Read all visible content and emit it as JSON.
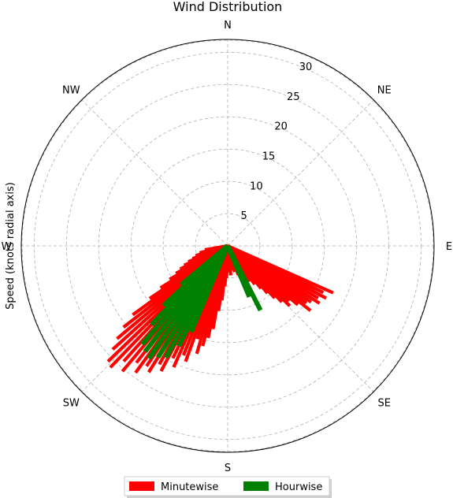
{
  "chart_data": {
    "type": "polar-bar",
    "title": "Wind Distribution",
    "ylabel": "Speed (knots radial axis)",
    "directions": [
      "N",
      "NE",
      "E",
      "SE",
      "S",
      "SW",
      "W",
      "NW"
    ],
    "radial_ticks": [
      "5",
      "10",
      "15",
      "20",
      "25",
      "30"
    ],
    "rlim": [
      0,
      32
    ],
    "theta_zero": "N",
    "theta_direction": "clockwise",
    "grid": true,
    "legend": {
      "placement": "bottom-center",
      "entries": [
        "Minutewise",
        "Hourwise"
      ]
    },
    "series": [
      {
        "name": "Minutewise",
        "color": "#ff0000",
        "points": [
          {
            "dir_deg": 114,
            "speed": 17.9
          },
          {
            "dir_deg": 116,
            "speed": 16.5
          },
          {
            "dir_deg": 118,
            "speed": 17.3
          },
          {
            "dir_deg": 120,
            "speed": 16.2
          },
          {
            "dir_deg": 122,
            "speed": 16.8
          },
          {
            "dir_deg": 124,
            "speed": 15.6
          },
          {
            "dir_deg": 126,
            "speed": 15.1
          },
          {
            "dir_deg": 128,
            "speed": 16.3
          },
          {
            "dir_deg": 130,
            "speed": 14.2
          },
          {
            "dir_deg": 132,
            "speed": 12.8
          },
          {
            "dir_deg": 134,
            "speed": 13.4
          },
          {
            "dir_deg": 136,
            "speed": 12.1
          },
          {
            "dir_deg": 138,
            "speed": 10.9
          },
          {
            "dir_deg": 140,
            "speed": 9.6
          },
          {
            "dir_deg": 142,
            "speed": 8.4
          },
          {
            "dir_deg": 145,
            "speed": 7.3
          },
          {
            "dir_deg": 148,
            "speed": 6.5
          },
          {
            "dir_deg": 152,
            "speed": 6.2
          },
          {
            "dir_deg": 156,
            "speed": 5.4
          },
          {
            "dir_deg": 160,
            "speed": 4.8
          },
          {
            "dir_deg": 165,
            "speed": 4.2
          },
          {
            "dir_deg": 170,
            "speed": 3.9
          },
          {
            "dir_deg": 174,
            "speed": 4.6
          },
          {
            "dir_deg": 176,
            "speed": 3.2
          },
          {
            "dir_deg": 178,
            "speed": 4.1
          },
          {
            "dir_deg": 182,
            "speed": 5.0
          },
          {
            "dir_deg": 184,
            "speed": 6.3
          },
          {
            "dir_deg": 186,
            "speed": 8.5
          },
          {
            "dir_deg": 188,
            "speed": 10.2
          },
          {
            "dir_deg": 190,
            "speed": 13.1
          },
          {
            "dir_deg": 192,
            "speed": 14.6
          },
          {
            "dir_deg": 194,
            "speed": 16.0
          },
          {
            "dir_deg": 196,
            "speed": 17.4
          },
          {
            "dir_deg": 198,
            "speed": 15.2
          },
          {
            "dir_deg": 200,
            "speed": 19.1
          },
          {
            "dir_deg": 202,
            "speed": 18.3
          },
          {
            "dir_deg": 204,
            "speed": 20.6
          },
          {
            "dir_deg": 206,
            "speed": 19.4
          },
          {
            "dir_deg": 208,
            "speed": 22.0
          },
          {
            "dir_deg": 210,
            "speed": 21.2
          },
          {
            "dir_deg": 212,
            "speed": 23.1
          },
          {
            "dir_deg": 214,
            "speed": 22.5
          },
          {
            "dir_deg": 216,
            "speed": 24.3
          },
          {
            "dir_deg": 218,
            "speed": 23.0
          },
          {
            "dir_deg": 220,
            "speed": 25.4
          },
          {
            "dir_deg": 222,
            "speed": 24.1
          },
          {
            "dir_deg": 224,
            "speed": 26.2
          },
          {
            "dir_deg": 226,
            "speed": 25.8
          },
          {
            "dir_deg": 228,
            "speed": 24.0
          },
          {
            "dir_deg": 230,
            "speed": 22.4
          },
          {
            "dir_deg": 232,
            "speed": 20.5
          },
          {
            "dir_deg": 234,
            "speed": 18.2
          },
          {
            "dir_deg": 236,
            "speed": 14.6
          },
          {
            "dir_deg": 238,
            "speed": 12.3
          },
          {
            "dir_deg": 240,
            "speed": 10.4
          },
          {
            "dir_deg": 242,
            "speed": 9.1
          },
          {
            "dir_deg": 244,
            "speed": 8.2
          },
          {
            "dir_deg": 246,
            "speed": 7.4
          },
          {
            "dir_deg": 248,
            "speed": 6.6
          },
          {
            "dir_deg": 250,
            "speed": 5.8
          },
          {
            "dir_deg": 253,
            "speed": 5.2
          },
          {
            "dir_deg": 256,
            "speed": 4.5
          },
          {
            "dir_deg": 260,
            "speed": 3.6
          }
        ]
      },
      {
        "name": "Hourwise",
        "color": "#008000",
        "points": [
          {
            "dir_deg": 153,
            "speed": 11.2
          },
          {
            "dir_deg": 157,
            "speed": 8.6
          },
          {
            "dir_deg": 203,
            "speed": 14.5
          },
          {
            "dir_deg": 206,
            "speed": 17.3
          },
          {
            "dir_deg": 209,
            "speed": 19.8
          },
          {
            "dir_deg": 212,
            "speed": 20.4
          },
          {
            "dir_deg": 215,
            "speed": 21.3
          },
          {
            "dir_deg": 218,
            "speed": 20.8
          },
          {
            "dir_deg": 221,
            "speed": 20.2
          },
          {
            "dir_deg": 224,
            "speed": 17.0
          },
          {
            "dir_deg": 227,
            "speed": 13.6
          },
          {
            "dir_deg": 230,
            "speed": 9.4
          }
        ]
      }
    ]
  }
}
